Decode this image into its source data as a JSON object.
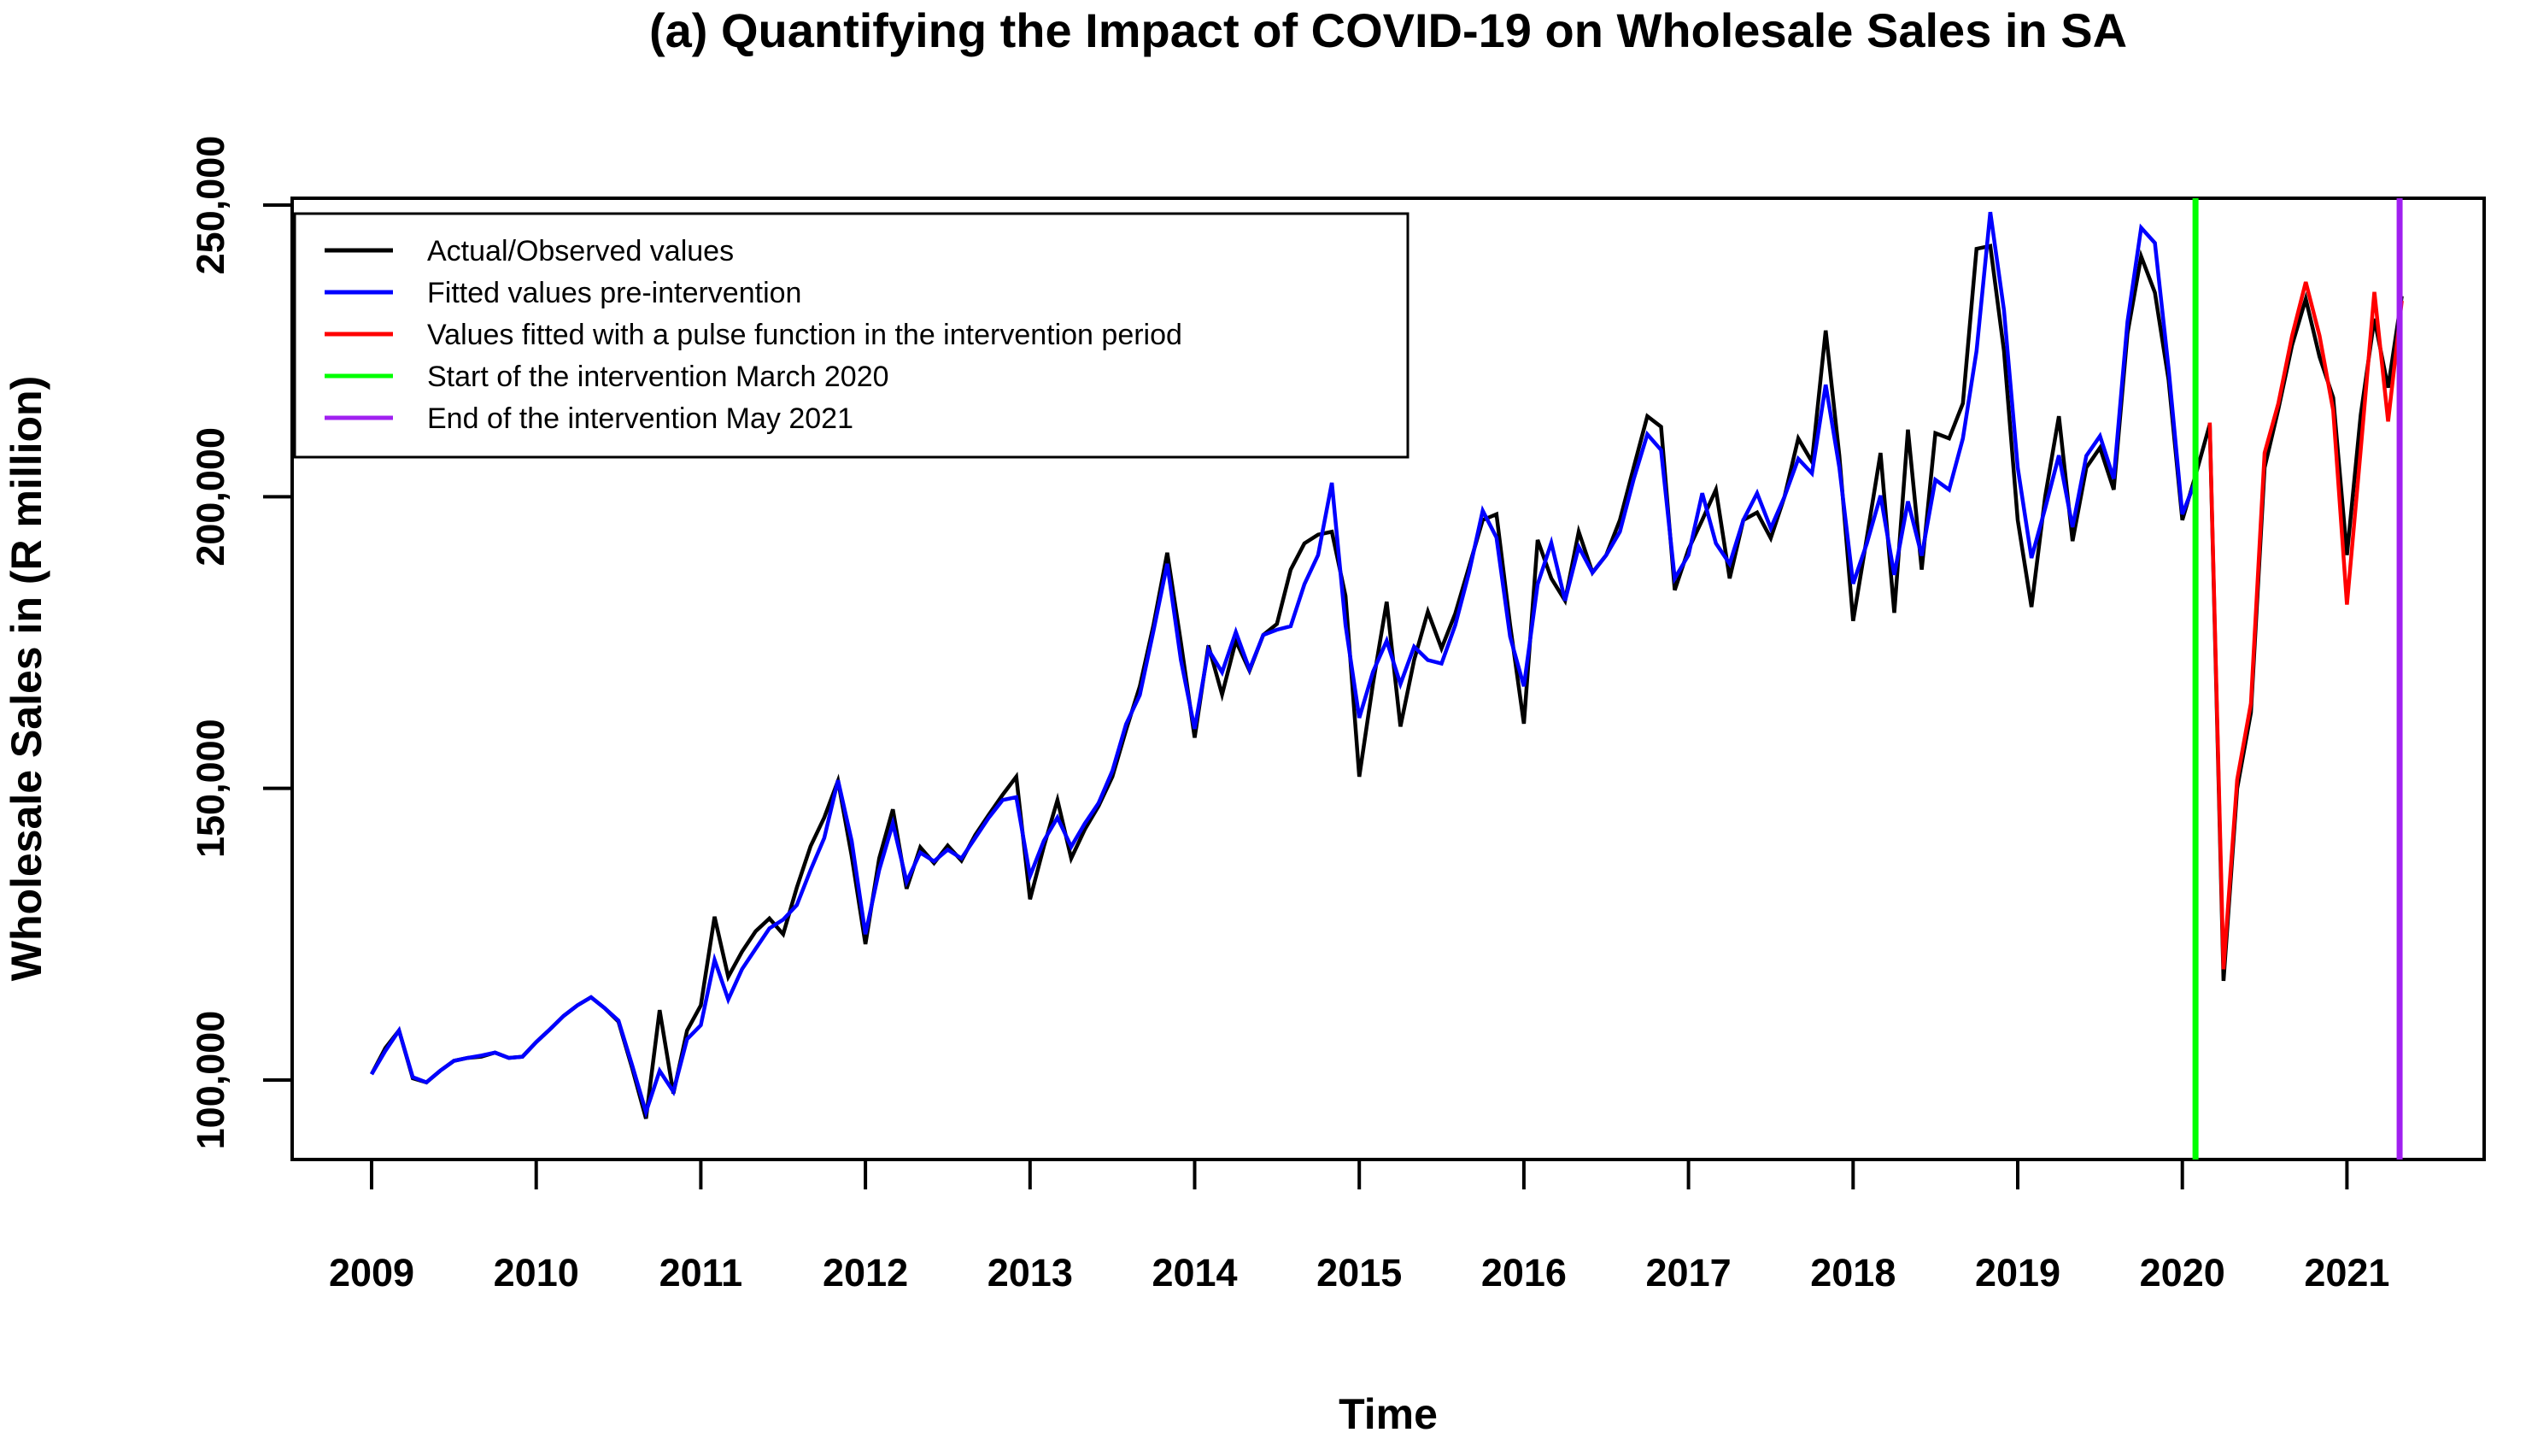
{
  "chart_data": {
    "type": "line",
    "title": "(a) Quantifying the Impact of COVID-19 on Wholesale Sales in SA",
    "xlabel": "Time",
    "ylabel": "Wholesale Sales in (R million)",
    "x_tick_labels": [
      "2009",
      "2010",
      "2011",
      "2012",
      "2013",
      "2014",
      "2015",
      "2016",
      "2017",
      "2018",
      "2019",
      "2020",
      "2021"
    ],
    "x_tick_values": [
      2009,
      2010,
      2011,
      2012,
      2013,
      2014,
      2015,
      2016,
      2017,
      2018,
      2019,
      2020,
      2021
    ],
    "y_tick_labels": [
      "100,000",
      "150,000",
      "200,000",
      "250,000"
    ],
    "y_tick_values": [
      100000,
      150000,
      200000,
      250000
    ],
    "ylim": [
      87000,
      251500
    ],
    "xlim": [
      2008.52,
      2021.83
    ],
    "grid": "off",
    "legend_position": "top-left",
    "frequency": "monthly",
    "series": [
      {
        "name": "Actual/Observed values",
        "color": "#000000",
        "start": "2009-01",
        "end": "2021-05",
        "values": [
          101000,
          105500,
          108500,
          100300,
          99600,
          101600,
          103300,
          103800,
          104000,
          104700,
          103800,
          104000,
          106500,
          108700,
          111000,
          112800,
          114200,
          112300,
          110000,
          102000,
          93400,
          112000,
          97700,
          108500,
          112800,
          128000,
          117700,
          122000,
          125500,
          127700,
          125000,
          133000,
          140100,
          145000,
          151300,
          138400,
          123300,
          138000,
          146400,
          132800,
          139900,
          137200,
          140200,
          137600,
          142000,
          145500,
          148900,
          152000,
          131000,
          140000,
          148000,
          138000,
          143000,
          147000,
          152000,
          160000,
          167500,
          178000,
          190400,
          175000,
          158700,
          174500,
          166100,
          175300,
          170200,
          176300,
          178200,
          187500,
          192000,
          193500,
          194000,
          183000,
          152000,
          168000,
          182000,
          160600,
          172000,
          180300,
          174000,
          180000,
          188000,
          196000,
          197000,
          178000,
          161100,
          192600,
          186000,
          182200,
          194000,
          187000,
          190000,
          196000,
          205000,
          213800,
          212000,
          184000,
          191000,
          196000,
          201200,
          186000,
          196000,
          197300,
          192900,
          200000,
          210000,
          206000,
          228500,
          207000,
          178700,
          193000,
          207500,
          180100,
          211500,
          187500,
          210900,
          210000,
          216000,
          242500,
          243000,
          225000,
          196000,
          181100,
          200000,
          213800,
          192400,
          205000,
          208400,
          201200,
          228000,
          241200,
          235000,
          220000,
          196000,
          204000,
          212400,
          117000,
          150000,
          163000,
          205000,
          215000,
          226000,
          233900,
          224000,
          217000,
          190000,
          214000,
          230500,
          218700,
          234400
        ]
      },
      {
        "name": "Fitted values pre-intervention",
        "color": "#0000FF",
        "start": "2009-01",
        "end": "2020-02",
        "values": [
          101000,
          105000,
          108500,
          100500,
          99600,
          101600,
          103300,
          103800,
          104200,
          104700,
          103800,
          104000,
          106500,
          108700,
          111000,
          112800,
          114200,
          112300,
          110200,
          102500,
          94500,
          101600,
          98000,
          107000,
          109400,
          120600,
          113800,
          119000,
          122500,
          126000,
          127500,
          130000,
          136000,
          141500,
          151400,
          141000,
          125000,
          136000,
          144000,
          134000,
          139000,
          137500,
          139500,
          138000,
          141500,
          145000,
          148000,
          148500,
          135000,
          141000,
          145000,
          140000,
          144000,
          147500,
          153000,
          161000,
          166000,
          177000,
          188500,
          172000,
          160200,
          173800,
          169900,
          176800,
          170400,
          176300,
          177200,
          177800,
          185000,
          190000,
          202400,
          178000,
          162100,
          170000,
          175300,
          167900,
          174300,
          172000,
          171400,
          178000,
          187000,
          197600,
          193000,
          176000,
          167500,
          185000,
          192100,
          182200,
          191400,
          187000,
          190000,
          194000,
          203000,
          210700,
          208000,
          186000,
          190000,
          200600,
          192000,
          188500,
          196000,
          200600,
          194600,
          200000,
          206500,
          204000,
          219200,
          205000,
          185100,
          192000,
          200200,
          186600,
          199200,
          189900,
          202900,
          201200,
          210000,
          225000,
          248800,
          232000,
          205000,
          189500,
          198000,
          207100,
          194800,
          207000,
          210400,
          203100,
          230000,
          246100,
          243500,
          222000,
          197000,
          203000
        ]
      },
      {
        "name": "Values fitted with a pulse function in the intervention period",
        "color": "#FF0000",
        "start": "2020-03",
        "end": "2021-05",
        "values": [
          212700,
          119000,
          151500,
          164600,
          207500,
          216000,
          227600,
          236800,
          227600,
          214800,
          181500,
          208000,
          235100,
          212900,
          233600
        ]
      }
    ],
    "markers": [
      {
        "name": "Start of the intervention March 2020",
        "color": "#00FF00",
        "time": 2020.08
      },
      {
        "name": "End of the intervention May 2021",
        "color": "#A020F0",
        "time": 2021.32
      }
    ]
  },
  "legend": {
    "items": [
      {
        "label": "Actual/Observed values",
        "color": "#000000"
      },
      {
        "label": "Fitted values pre-intervention",
        "color": "#0000FF"
      },
      {
        "label": "Values fitted with a pulse function in the intervention period",
        "color": "#FF0000"
      },
      {
        "label": "Start of the intervention March 2020",
        "color": "#00FF00"
      },
      {
        "label": "End of the intervention May 2021",
        "color": "#A020F0"
      }
    ]
  }
}
